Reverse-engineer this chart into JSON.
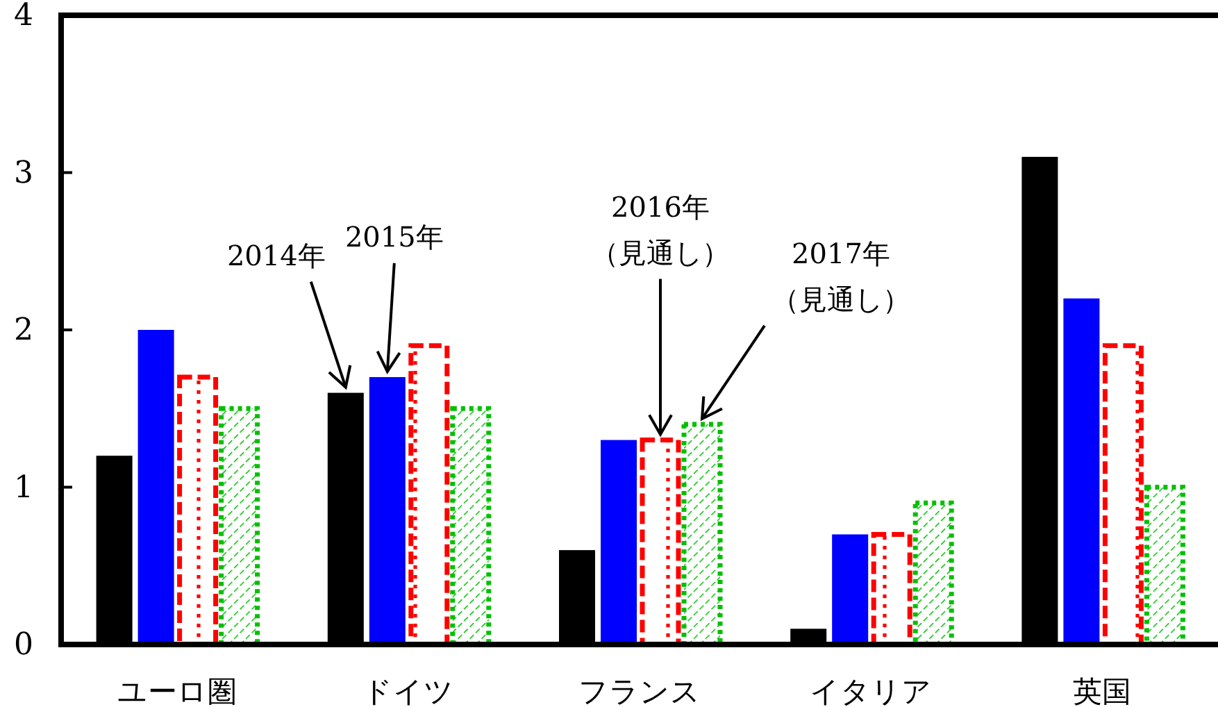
{
  "chart_data": {
    "type": "bar",
    "categories": [
      "ユーロ圏",
      "ドイツ",
      "フランス",
      "イタリア",
      "英国"
    ],
    "series": [
      {
        "name": "2014年",
        "color": "#000000",
        "line_style": "solid",
        "values": [
          1.2,
          1.6,
          0.6,
          0.1,
          3.1
        ]
      },
      {
        "name": "2015年",
        "color": "#0000ff",
        "line_style": "solid",
        "values": [
          2.0,
          1.7,
          1.3,
          0.7,
          2.2
        ]
      },
      {
        "name": "2016年（見通し）",
        "color": "#ff0000",
        "line_style": "dashed",
        "values": [
          1.7,
          1.9,
          1.3,
          0.7,
          1.9
        ]
      },
      {
        "name": "2017年（見通し）",
        "color": "#00c000",
        "line_style": "dotted",
        "values": [
          1.5,
          1.5,
          1.4,
          0.9,
          1.0
        ]
      }
    ],
    "ylim": [
      0,
      4
    ],
    "yticks": [
      0,
      1,
      2,
      3,
      4
    ],
    "grid": false,
    "legend": false
  }
}
